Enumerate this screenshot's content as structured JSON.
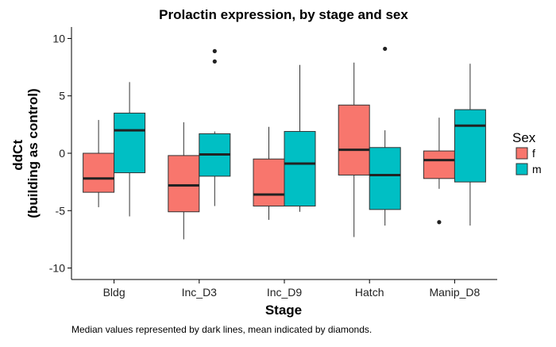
{
  "chart_data": {
    "type": "boxplot",
    "title": "Prolactin expression, by stage and sex",
    "xlabel": "Stage",
    "ylabel_lines": [
      "ddCt",
      "(building as control)"
    ],
    "caption": "Median values represented by dark lines, mean indicated by diamonds.",
    "ylim": [
      -11,
      11
    ],
    "yticks": [
      10,
      5,
      0,
      -5,
      -10
    ],
    "ytick_labels": [
      "10",
      "5",
      "0",
      "-5",
      "-10"
    ],
    "categories": [
      "Bldg",
      "Inc_D3",
      "Inc_D9",
      "Hatch",
      "Manip_D8"
    ],
    "grid": false,
    "legend": {
      "title": "Sex",
      "position": "right",
      "items": [
        {
          "label": "f",
          "color": "#F8766D"
        },
        {
          "label": "m",
          "color": "#00BFC4"
        }
      ]
    },
    "series": [
      {
        "name": "f",
        "color": "#F8766D",
        "boxes": [
          {
            "whisker_low": -4.7,
            "q1": -3.4,
            "median": -2.2,
            "q3": 0.0,
            "whisker_high": 2.9,
            "outliers": []
          },
          {
            "whisker_low": -7.5,
            "q1": -5.1,
            "median": -2.8,
            "q3": -0.2,
            "whisker_high": 2.7,
            "outliers": []
          },
          {
            "whisker_low": -5.8,
            "q1": -4.6,
            "median": -3.6,
            "q3": -0.5,
            "whisker_high": 2.3,
            "outliers": []
          },
          {
            "whisker_low": -7.3,
            "q1": -1.9,
            "median": 0.3,
            "q3": 4.2,
            "whisker_high": 7.9,
            "outliers": []
          },
          {
            "whisker_low": -3.1,
            "q1": -2.2,
            "median": -0.6,
            "q3": 0.2,
            "whisker_high": 3.1,
            "outliers": [
              -6.0
            ]
          }
        ]
      },
      {
        "name": "m",
        "color": "#00BFC4",
        "boxes": [
          {
            "whisker_low": -5.5,
            "q1": -1.7,
            "median": 2.0,
            "q3": 3.5,
            "whisker_high": 6.2,
            "outliers": []
          },
          {
            "whisker_low": -4.6,
            "q1": -2.0,
            "median": -0.1,
            "q3": 1.7,
            "whisker_high": 1.9,
            "outliers": [
              8.0,
              8.9
            ]
          },
          {
            "whisker_low": -5.1,
            "q1": -4.6,
            "median": -0.9,
            "q3": 1.9,
            "whisker_high": 7.7,
            "outliers": []
          },
          {
            "whisker_low": -6.3,
            "q1": -4.9,
            "median": -1.9,
            "q3": 0.5,
            "whisker_high": 2.0,
            "outliers": [
              9.1
            ]
          },
          {
            "whisker_low": -6.3,
            "q1": -2.5,
            "median": 2.4,
            "q3": 3.8,
            "whisker_high": 7.8,
            "outliers": []
          }
        ]
      }
    ]
  }
}
